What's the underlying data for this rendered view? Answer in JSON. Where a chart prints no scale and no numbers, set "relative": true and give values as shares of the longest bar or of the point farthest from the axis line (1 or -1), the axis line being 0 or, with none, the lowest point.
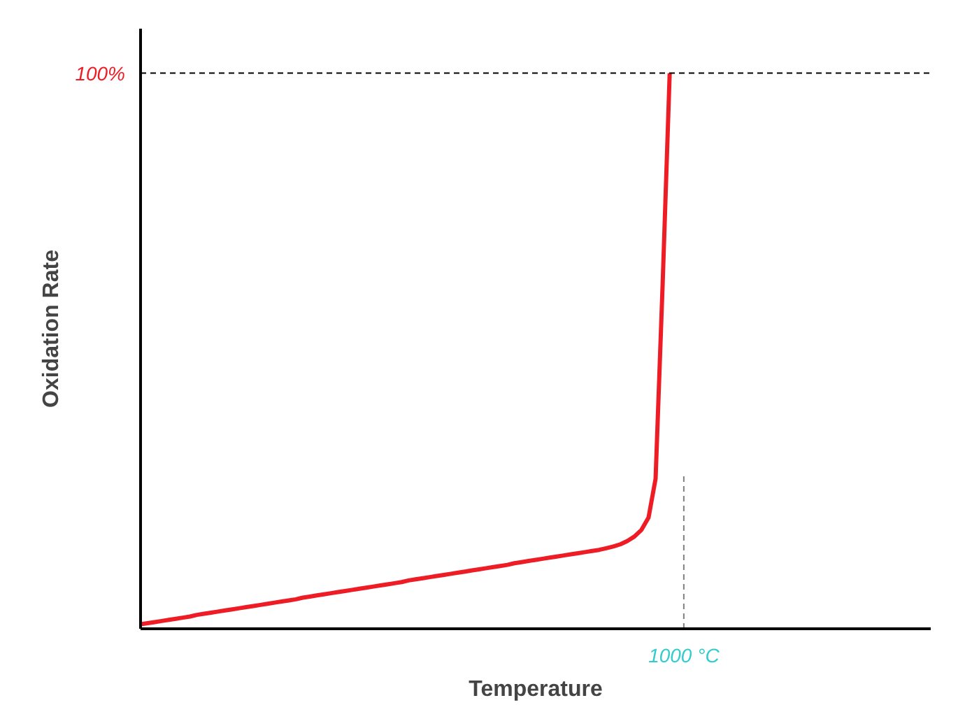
{
  "chart_data": {
    "type": "line",
    "xlabel": "Temperature",
    "ylabel": "Oxidation Rate",
    "relative": true,
    "categories": [
      null,
      null,
      null,
      null,
      null,
      null,
      null,
      null,
      null,
      null,
      null,
      null,
      null,
      null,
      null,
      null,
      null,
      null,
      null,
      null,
      null,
      null,
      null,
      null,
      null,
      null,
      null,
      null,
      null,
      null,
      null,
      null,
      null,
      null,
      null,
      null,
      null,
      null,
      null,
      null,
      null,
      null,
      null,
      null,
      null,
      null,
      null,
      null,
      null,
      null,
      null,
      null,
      null,
      null,
      null,
      null,
      null,
      null,
      null,
      null,
      null,
      null,
      null,
      null,
      null,
      null,
      null,
      null,
      null,
      null,
      null,
      null,
      null,
      null,
      null,
      null,
      null,
      null,
      null,
      null,
      null,
      null,
      null,
      null,
      null,
      null,
      null,
      null,
      null,
      null,
      null,
      null,
      null,
      null,
      null,
      null,
      null,
      null,
      null,
      null,
      null,
      null,
      null,
      null,
      null,
      null,
      null,
      null,
      null,
      null,
      null,
      null,
      null
    ],
    "series": [
      {
        "color": "#ee1c25",
        "values": [
          0.008,
          0.01,
          0.012,
          0.014,
          0.016,
          0.018,
          0.02,
          0.022,
          0.025,
          0.027,
          0.029,
          0.031,
          0.033,
          0.035,
          0.037,
          0.039,
          0.041,
          0.043,
          0.045,
          0.047,
          0.049,
          0.051,
          0.053,
          0.056,
          0.058,
          0.06,
          0.062,
          0.064,
          0.066,
          0.068,
          0.07,
          0.072,
          0.074,
          0.076,
          0.078,
          0.08,
          0.082,
          0.084,
          0.087,
          0.089,
          0.091,
          0.093,
          0.095,
          0.097,
          0.099,
          0.101,
          0.103,
          0.105,
          0.107,
          0.109,
          0.111,
          0.113,
          0.115,
          0.118,
          0.12,
          0.122,
          0.124,
          0.126,
          0.128,
          0.13,
          0.132,
          0.134,
          0.136,
          0.138,
          0.14,
          0.142,
          0.145,
          0.148,
          0.152,
          0.158,
          0.166,
          0.178,
          0.2,
          0.27,
          0.62,
          1.0,
          null,
          null,
          null,
          null,
          null,
          null,
          null,
          null,
          null,
          null,
          null,
          null,
          null,
          null,
          null,
          null,
          null,
          null,
          null,
          null,
          null,
          null,
          null,
          null,
          null,
          null,
          null,
          null,
          null,
          null,
          null,
          null,
          null,
          null,
          null,
          null,
          null
        ]
      }
    ],
    "ref_lines": [
      {
        "axis": "y",
        "value": 1.0,
        "label": "100%",
        "color": "#000000",
        "line_style": "dashed"
      }
    ],
    "annotations": [
      "1000 °C"
    ],
    "grid": false,
    "marker": "none",
    "line_style": "solid"
  }
}
